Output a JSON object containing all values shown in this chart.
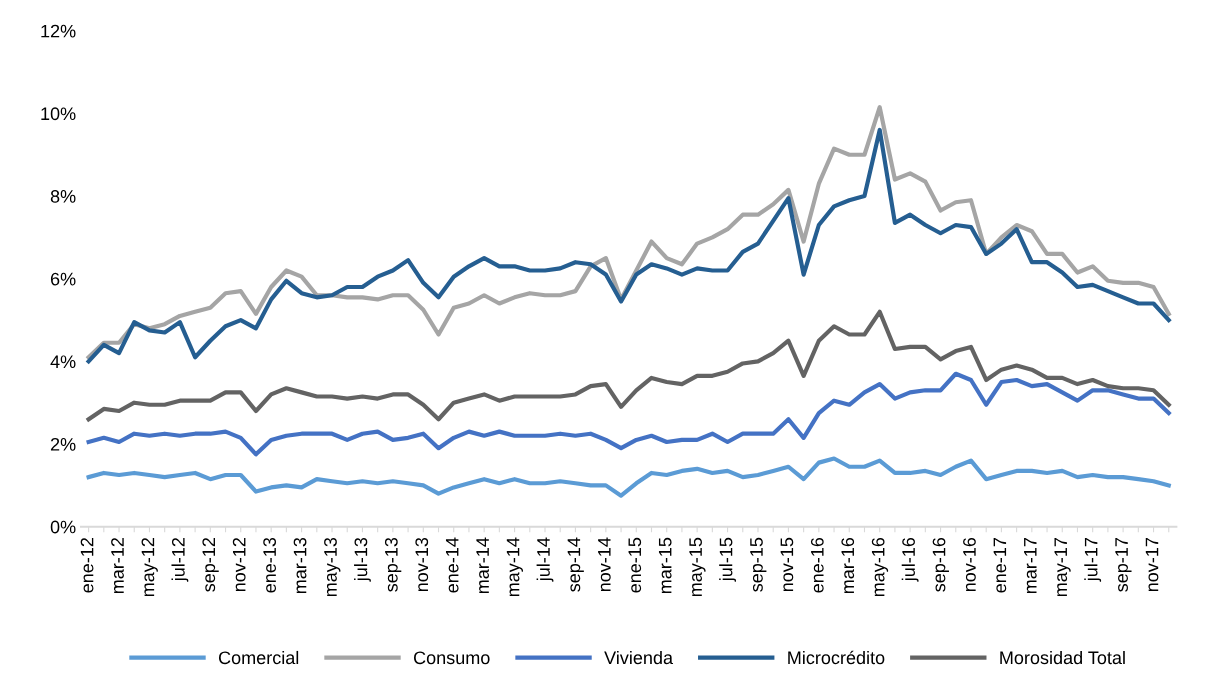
{
  "chart_data": {
    "type": "line",
    "categories": [
      "ene-12",
      null,
      "mar-12",
      null,
      "may-12",
      null,
      "jul-12",
      null,
      "sep-12",
      null,
      "nov-12",
      null,
      "ene-13",
      null,
      "mar-13",
      null,
      "may-13",
      null,
      "jul-13",
      null,
      "sep-13",
      null,
      "nov-13",
      null,
      "ene-14",
      null,
      "mar-14",
      null,
      "may-14",
      null,
      "jul-14",
      null,
      "sep-14",
      null,
      "nov-14",
      null,
      "ene-15",
      null,
      "mar-15",
      null,
      "may-15",
      null,
      "jul-15",
      null,
      "sep-15",
      null,
      "nov-15",
      null,
      "ene-16",
      null,
      "mar-16",
      null,
      "may-16",
      null,
      "jul-16",
      null,
      "sep-16",
      null,
      "nov-16",
      null,
      "ene-17",
      null,
      "mar-17",
      null,
      "may-17",
      null,
      "jul-17",
      null,
      "sep-17",
      null,
      "nov-17",
      null
    ],
    "series": [
      {
        "name": "Comercial",
        "color": "#5b9bd5",
        "values": [
          1.2,
          1.3,
          1.25,
          1.3,
          1.25,
          1.2,
          1.25,
          1.3,
          1.15,
          1.25,
          1.25,
          0.85,
          0.95,
          1.0,
          0.95,
          1.15,
          1.1,
          1.05,
          1.1,
          1.05,
          1.1,
          1.05,
          1.0,
          0.8,
          0.95,
          1.05,
          1.15,
          1.05,
          1.15,
          1.05,
          1.05,
          1.1,
          1.05,
          1.0,
          1.0,
          0.75,
          1.05,
          1.3,
          1.25,
          1.35,
          1.4,
          1.3,
          1.35,
          1.2,
          1.25,
          1.35,
          1.45,
          1.15,
          1.55,
          1.65,
          1.45,
          1.45,
          1.6,
          1.3,
          1.3,
          1.35,
          1.25,
          1.45,
          1.6,
          1.15,
          1.25,
          1.35,
          1.35,
          1.3,
          1.35,
          1.2,
          1.25,
          1.2,
          1.2,
          1.15,
          1.1,
          1.0
        ]
      },
      {
        "name": "Consumo",
        "color": "#a5a5a5",
        "values": [
          4.1,
          4.45,
          4.45,
          4.9,
          4.8,
          4.9,
          5.1,
          5.2,
          5.3,
          5.65,
          5.7,
          5.15,
          5.8,
          6.2,
          6.05,
          5.6,
          5.6,
          5.55,
          5.55,
          5.5,
          5.6,
          5.6,
          5.25,
          4.65,
          5.3,
          5.4,
          5.6,
          5.4,
          5.55,
          5.65,
          5.6,
          5.6,
          5.7,
          6.3,
          6.5,
          5.5,
          6.2,
          6.9,
          6.5,
          6.35,
          6.85,
          7.0,
          7.2,
          7.55,
          7.55,
          7.8,
          8.15,
          6.9,
          8.3,
          9.15,
          9.0,
          9.0,
          10.15,
          8.4,
          8.55,
          8.35,
          7.65,
          7.85,
          7.9,
          6.6,
          7.0,
          7.3,
          7.15,
          6.6,
          6.6,
          6.15,
          6.3,
          5.95,
          5.9,
          5.9,
          5.8,
          5.15
        ]
      },
      {
        "name": "Vivienda",
        "color": "#4472c4",
        "values": [
          2.05,
          2.15,
          2.05,
          2.25,
          2.2,
          2.25,
          2.2,
          2.25,
          2.25,
          2.3,
          2.15,
          1.75,
          2.1,
          2.2,
          2.25,
          2.25,
          2.25,
          2.1,
          2.25,
          2.3,
          2.1,
          2.15,
          2.25,
          1.9,
          2.15,
          2.3,
          2.2,
          2.3,
          2.2,
          2.2,
          2.2,
          2.25,
          2.2,
          2.25,
          2.1,
          1.9,
          2.1,
          2.2,
          2.05,
          2.1,
          2.1,
          2.25,
          2.05,
          2.25,
          2.25,
          2.25,
          2.6,
          2.15,
          2.75,
          3.05,
          2.95,
          3.25,
          3.45,
          3.1,
          3.25,
          3.3,
          3.3,
          3.7,
          3.55,
          2.95,
          3.5,
          3.55,
          3.4,
          3.45,
          3.25,
          3.05,
          3.3,
          3.3,
          3.2,
          3.1,
          3.1,
          2.75
        ]
      },
      {
        "name": "Microcrédito",
        "color": "#255e91",
        "values": [
          4.0,
          4.4,
          4.2,
          4.95,
          4.75,
          4.7,
          4.95,
          4.1,
          4.5,
          4.85,
          5.0,
          4.8,
          5.5,
          5.95,
          5.65,
          5.55,
          5.6,
          5.8,
          5.8,
          6.05,
          6.2,
          6.45,
          5.9,
          5.55,
          6.05,
          6.3,
          6.5,
          6.3,
          6.3,
          6.2,
          6.2,
          6.25,
          6.4,
          6.35,
          6.1,
          5.45,
          6.1,
          6.35,
          6.25,
          6.1,
          6.25,
          6.2,
          6.2,
          6.65,
          6.85,
          7.4,
          7.95,
          6.1,
          7.3,
          7.75,
          7.9,
          8.0,
          9.6,
          7.35,
          7.55,
          7.3,
          7.1,
          7.3,
          7.25,
          6.6,
          6.85,
          7.2,
          6.4,
          6.4,
          6.15,
          5.8,
          5.85,
          5.7,
          5.55,
          5.4,
          5.4,
          5.0
        ]
      },
      {
        "name": "Morosidad Total",
        "color": "#636363",
        "values": [
          2.6,
          2.85,
          2.8,
          3.0,
          2.95,
          2.95,
          3.05,
          3.05,
          3.05,
          3.25,
          3.25,
          2.8,
          3.2,
          3.35,
          3.25,
          3.15,
          3.15,
          3.1,
          3.15,
          3.1,
          3.2,
          3.2,
          2.95,
          2.6,
          3.0,
          3.1,
          3.2,
          3.05,
          3.15,
          3.15,
          3.15,
          3.15,
          3.2,
          3.4,
          3.45,
          2.9,
          3.3,
          3.6,
          3.5,
          3.45,
          3.65,
          3.65,
          3.75,
          3.95,
          4.0,
          4.2,
          4.5,
          3.65,
          4.5,
          4.85,
          4.65,
          4.65,
          5.2,
          4.3,
          4.35,
          4.35,
          4.05,
          4.25,
          4.35,
          3.55,
          3.8,
          3.9,
          3.8,
          3.6,
          3.6,
          3.45,
          3.55,
          3.4,
          3.35,
          3.35,
          3.3,
          2.95
        ]
      }
    ],
    "ylim": [
      0,
      12
    ],
    "yticks": [
      {
        "value": 0,
        "label": "0%"
      },
      {
        "value": 2,
        "label": "2%"
      },
      {
        "value": 4,
        "label": "4%"
      },
      {
        "value": 6,
        "label": "6%"
      },
      {
        "value": 8,
        "label": "8%"
      },
      {
        "value": 10,
        "label": "10%"
      },
      {
        "value": 12,
        "label": "12%"
      }
    ],
    "grid": false,
    "legend": "bottom",
    "marker": "none",
    "line_style": "solid"
  }
}
